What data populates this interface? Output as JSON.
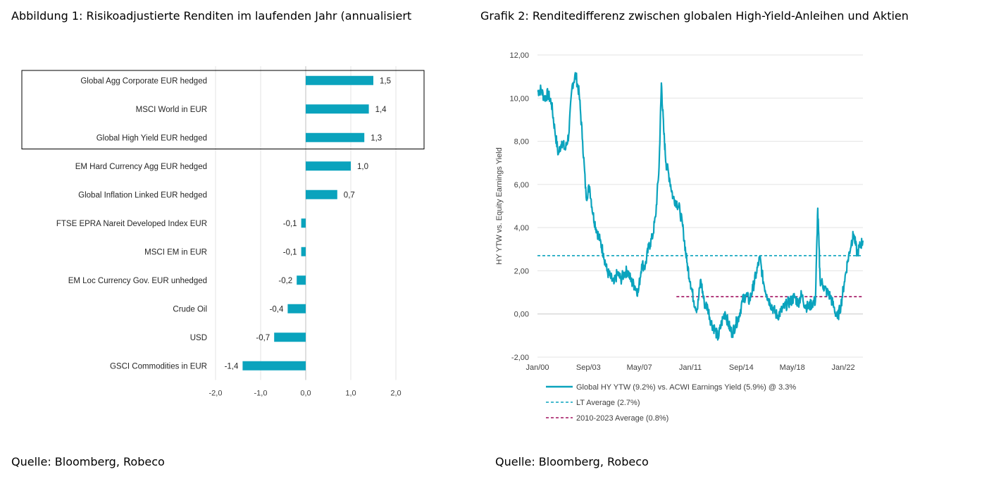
{
  "figure1": {
    "title": "Abbildung 1: Risikoadjustierte Renditen im laufenden Jahr (annualisiert",
    "source": "Quelle: Bloomberg, Robeco"
  },
  "figure2": {
    "title": "Grafik 2: Renditedifferenz zwischen globalen High-Yield-Anleihen und Aktien",
    "source": "Quelle: Bloomberg, Robeco"
  },
  "chart_data": [
    {
      "type": "bar",
      "orientation": "horizontal",
      "categories": [
        "Global Agg Corporate EUR hedged",
        "MSCI World in EUR",
        "Global High Yield EUR hedged",
        "EM Hard Currency Agg EUR hedged",
        "Global Inflation Linked EUR hedged",
        "FTSE EPRA Nareit Developed Index EUR",
        "MSCI EM in EUR",
        "EM Loc Currency Gov. EUR unhedged",
        "Crude Oil",
        "USD",
        "GSCI Commodities in EUR"
      ],
      "values": [
        1.5,
        1.4,
        1.3,
        1.0,
        0.7,
        -0.1,
        -0.1,
        -0.2,
        -0.4,
        -0.7,
        -1.4
      ],
      "value_labels": [
        "1,5",
        "1,4",
        "1,3",
        "1,0",
        "0,7",
        "-0,1",
        "-0,1",
        "-0,2",
        "-0,4",
        "-0,7",
        "-1,4"
      ],
      "xlim": [
        -2.0,
        2.0
      ],
      "xticks": [
        "-2,0",
        "-1,0",
        "0,0",
        "1,0",
        "2,0"
      ],
      "highlight_box_categories": [
        0,
        1,
        2
      ],
      "bar_color": "#0aa3bd",
      "grid": true
    },
    {
      "type": "line",
      "ylabel": "HY YTW vs. Equity Earnings Yield",
      "ylim": [
        -2.0,
        12.0
      ],
      "yticks": [
        "-2,00",
        "0,00",
        "2,00",
        "4,00",
        "6,00",
        "8,00",
        "10,00",
        "12,00"
      ],
      "xlim": [
        "2000-01",
        "2023-06"
      ],
      "xticks": [
        "Jan/00",
        "Sep/03",
        "May/07",
        "Jan/11",
        "Sep/14",
        "May/18",
        "Jan/22"
      ],
      "series": [
        {
          "name": "Global HY YTW (9.2%) vs. ACWI Earnings Yield (5.9%) @ 3.3%",
          "color": "#0aa3bd",
          "style": "solid",
          "points": [
            [
              "2000-01",
              10.3
            ],
            [
              "2000-04",
              10.4
            ],
            [
              "2000-07",
              10.0
            ],
            [
              "2000-10",
              10.2
            ],
            [
              "2001-01",
              9.8
            ],
            [
              "2001-04",
              8.5
            ],
            [
              "2001-07",
              7.4
            ],
            [
              "2001-10",
              8.0
            ],
            [
              "2002-01",
              7.6
            ],
            [
              "2002-04",
              8.3
            ],
            [
              "2002-07",
              10.6
            ],
            [
              "2002-10",
              11.1
            ],
            [
              "2003-01",
              10.2
            ],
            [
              "2003-04",
              8.0
            ],
            [
              "2003-07",
              5.4
            ],
            [
              "2003-10",
              5.9
            ],
            [
              "2004-01",
              4.6
            ],
            [
              "2004-04",
              3.9
            ],
            [
              "2004-07",
              3.4
            ],
            [
              "2004-10",
              2.8
            ],
            [
              "2005-01",
              2.0
            ],
            [
              "2005-04",
              1.7
            ],
            [
              "2005-07",
              1.4
            ],
            [
              "2005-10",
              1.9
            ],
            [
              "2006-01",
              1.6
            ],
            [
              "2006-04",
              1.9
            ],
            [
              "2006-07",
              2.0
            ],
            [
              "2006-10",
              1.5
            ],
            [
              "2007-01",
              1.3
            ],
            [
              "2007-04",
              1.0
            ],
            [
              "2007-07",
              2.3
            ],
            [
              "2007-10",
              2.2
            ],
            [
              "2008-01",
              3.1
            ],
            [
              "2008-04",
              3.5
            ],
            [
              "2008-07",
              4.5
            ],
            [
              "2008-10",
              6.8
            ],
            [
              "2008-12",
              10.7
            ],
            [
              "2009-02",
              8.5
            ],
            [
              "2009-04",
              7.0
            ],
            [
              "2009-07",
              6.3
            ],
            [
              "2009-10",
              5.4
            ],
            [
              "2010-01",
              5.2
            ],
            [
              "2010-04",
              4.8
            ],
            [
              "2010-07",
              3.8
            ],
            [
              "2010-10",
              2.4
            ],
            [
              "2011-01",
              1.5
            ],
            [
              "2011-04",
              0.6
            ],
            [
              "2011-07",
              0.2
            ],
            [
              "2011-10",
              1.6
            ],
            [
              "2012-01",
              0.5
            ],
            [
              "2012-04",
              0.3
            ],
            [
              "2012-07",
              -0.4
            ],
            [
              "2012-10",
              -0.7
            ],
            [
              "2013-01",
              -1.1
            ],
            [
              "2013-04",
              -0.4
            ],
            [
              "2013-07",
              0.1
            ],
            [
              "2013-10",
              -0.5
            ],
            [
              "2014-01",
              -0.9
            ],
            [
              "2014-04",
              -0.5
            ],
            [
              "2014-07",
              -0.1
            ],
            [
              "2014-10",
              0.6
            ],
            [
              "2015-01",
              0.9
            ],
            [
              "2015-04",
              0.6
            ],
            [
              "2015-07",
              1.2
            ],
            [
              "2015-10",
              1.9
            ],
            [
              "2016-01",
              2.6
            ],
            [
              "2016-04",
              1.5
            ],
            [
              "2016-07",
              0.9
            ],
            [
              "2016-10",
              0.5
            ],
            [
              "2017-01",
              0.2
            ],
            [
              "2017-04",
              -0.1
            ],
            [
              "2017-07",
              0.1
            ],
            [
              "2017-10",
              0.3
            ],
            [
              "2018-01",
              0.5
            ],
            [
              "2018-04",
              0.6
            ],
            [
              "2018-07",
              0.8
            ],
            [
              "2018-10",
              0.5
            ],
            [
              "2019-01",
              0.9
            ],
            [
              "2019-04",
              0.4
            ],
            [
              "2019-07",
              0.3
            ],
            [
              "2019-10",
              0.5
            ],
            [
              "2020-01",
              0.6
            ],
            [
              "2020-03",
              4.9
            ],
            [
              "2020-05",
              1.6
            ],
            [
              "2020-08",
              1.3
            ],
            [
              "2020-11",
              1.0
            ],
            [
              "2021-02",
              0.8
            ],
            [
              "2021-05",
              0.3
            ],
            [
              "2021-08",
              -0.2
            ],
            [
              "2021-11",
              0.4
            ],
            [
              "2022-02",
              1.5
            ],
            [
              "2022-05",
              2.5
            ],
            [
              "2022-08",
              3.3
            ],
            [
              "2022-10",
              3.7
            ],
            [
              "2023-01",
              2.8
            ],
            [
              "2023-04",
              3.2
            ],
            [
              "2023-06",
              3.4
            ]
          ]
        },
        {
          "name": "LT Average (2.7%)",
          "color": "#0aa3bd",
          "style": "dashed",
          "points": [
            [
              "2000-01",
              2.7
            ],
            [
              "2023-06",
              2.7
            ]
          ]
        },
        {
          "name": "2010-2023 Average (0.8%)",
          "color": "#a0105f",
          "style": "dashed",
          "points": [
            [
              "2010-01",
              0.8
            ],
            [
              "2023-06",
              0.8
            ]
          ]
        }
      ],
      "legend_position": "bottom"
    }
  ]
}
